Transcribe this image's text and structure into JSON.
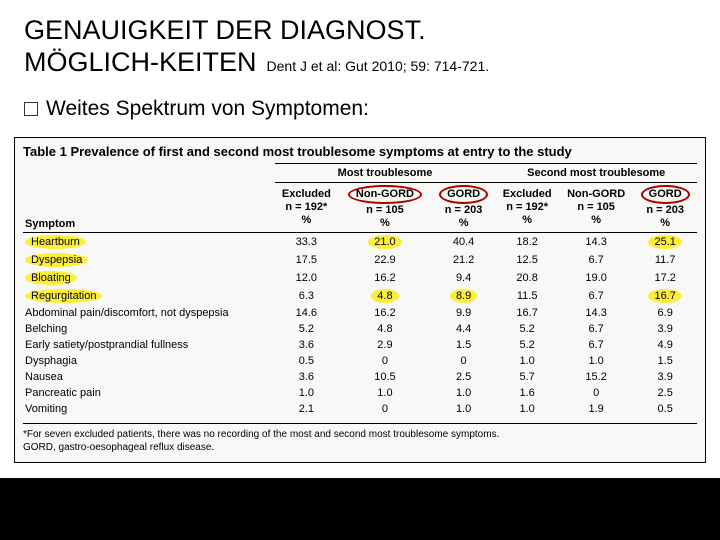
{
  "title": {
    "line1": "GENAUIGKEIT DER DIAGNOST.",
    "line2": "MÖGLICH-KEITEN",
    "citation": "Dent J et al: Gut 2010; 59: 714-721."
  },
  "bullet": "Weites Spektrum von Symptomen:",
  "table": {
    "caption": "Table 1   Prevalence of first and second most troublesome symptoms at entry to the study",
    "group_headers": [
      "Most troublesome",
      "Second most troublesome"
    ],
    "subcols": [
      {
        "label": "Excluded",
        "n": "n = 192*",
        "oval": false
      },
      {
        "label": "Non-GORD",
        "n": "n = 105",
        "oval": true
      },
      {
        "label": "GORD",
        "n": "n = 203",
        "oval": true
      },
      {
        "label": "Excluded",
        "n": "n = 192*",
        "oval": false
      },
      {
        "label": "Non-GORD",
        "n": "n = 105",
        "oval": false
      },
      {
        "label": "GORD",
        "n": "n = 203",
        "oval": true
      }
    ],
    "symptom_header": "Symptom",
    "pct_label": "%",
    "rows": [
      {
        "label": "Heartburn",
        "hl": true,
        "vals": [
          "33.3",
          "21.0",
          "40.4",
          "18.2",
          "14.3",
          "25.1"
        ],
        "hl_cols": [
          1,
          5
        ]
      },
      {
        "label": "Dyspepsia",
        "hl": true,
        "vals": [
          "17.5",
          "22.9",
          "21.2",
          "12.5",
          "6.7",
          "11.7"
        ],
        "hl_cols": []
      },
      {
        "label": "Bloating",
        "hl": true,
        "vals": [
          "12.0",
          "16.2",
          "9.4",
          "20.8",
          "19.0",
          "17.2"
        ],
        "hl_cols": []
      },
      {
        "label": "Regurgitation",
        "hl": true,
        "vals": [
          "6.3",
          "4.8",
          "8.9",
          "11.5",
          "6.7",
          "16.7"
        ],
        "hl_cols": [
          1,
          2,
          5
        ]
      },
      {
        "label": "Abdominal pain/discomfort, not dyspepsia",
        "hl": false,
        "vals": [
          "14.6",
          "16.2",
          "9.9",
          "16.7",
          "14.3",
          "6.9"
        ],
        "hl_cols": []
      },
      {
        "label": "Belching",
        "hl": false,
        "vals": [
          "5.2",
          "4.8",
          "4.4",
          "5.2",
          "6.7",
          "3.9"
        ],
        "hl_cols": []
      },
      {
        "label": "Early satiety/postprandial fullness",
        "hl": false,
        "vals": [
          "3.6",
          "2.9",
          "1.5",
          "5.2",
          "6.7",
          "4.9"
        ],
        "hl_cols": []
      },
      {
        "label": "Dysphagia",
        "hl": false,
        "vals": [
          "0.5",
          "0",
          "0",
          "1.0",
          "1.0",
          "1.5"
        ],
        "hl_cols": []
      },
      {
        "label": "Nausea",
        "hl": false,
        "vals": [
          "3.6",
          "10.5",
          "2.5",
          "5.7",
          "15.2",
          "3.9"
        ],
        "hl_cols": []
      },
      {
        "label": "Pancreatic pain",
        "hl": false,
        "vals": [
          "1.0",
          "1.0",
          "1.0",
          "1.6",
          "0",
          "2.5"
        ],
        "hl_cols": []
      },
      {
        "label": "Vomiting",
        "hl": false,
        "vals": [
          "2.1",
          "0",
          "1.0",
          "1.0",
          "1.9",
          "0.5"
        ],
        "hl_cols": []
      }
    ],
    "footnote1": "*For seven excluded patients, there was no recording of the most and second most troublesome symptoms.",
    "footnote2": "GORD, gastro-oesophageal reflux disease."
  },
  "colors": {
    "highlight": "#ffeb00",
    "oval_border": "#a00000",
    "background": "#ffffff",
    "bottom_bar": "#000000"
  }
}
